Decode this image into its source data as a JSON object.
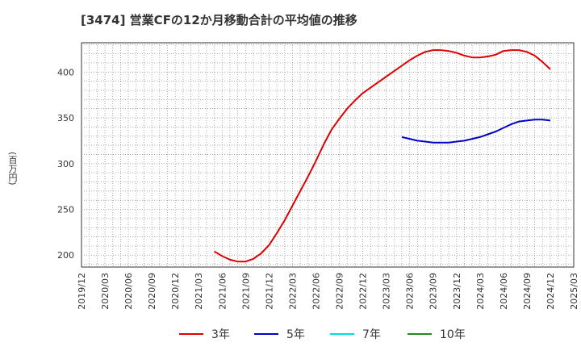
{
  "header": {
    "title": "[3474]  営業CFの12か月移動合計の平均値の推移"
  },
  "chart_data": {
    "type": "line",
    "title": "[3474]  営業CFの12か月移動合計の平均値の推移",
    "ylabel": "(百万円)",
    "xlabel": "",
    "ylim": [
      187,
      432
    ],
    "yticks": [
      200,
      250,
      300,
      350,
      400
    ],
    "x_categories": [
      "2019/12",
      "2020/03",
      "2020/06",
      "2020/09",
      "2020/12",
      "2021/03",
      "2021/06",
      "2021/09",
      "2021/12",
      "2022/03",
      "2022/06",
      "2022/09",
      "2022/12",
      "2023/03",
      "2023/06",
      "2023/09",
      "2023/12",
      "2024/03",
      "2024/06",
      "2024/09",
      "2024/12",
      "2025/03"
    ],
    "grid": true,
    "legend_position": "bottom",
    "series": [
      {
        "name": "3年",
        "color": "#dd0000",
        "points": [
          [
            "2021/05",
            204
          ],
          [
            "2021/06",
            199
          ],
          [
            "2021/07",
            195
          ],
          [
            "2021/08",
            193
          ],
          [
            "2021/09",
            193
          ],
          [
            "2021/10",
            196
          ],
          [
            "2021/11",
            202
          ],
          [
            "2021/12",
            211
          ],
          [
            "2022/01",
            224
          ],
          [
            "2022/02",
            238
          ],
          [
            "2022/03",
            254
          ],
          [
            "2022/04",
            270
          ],
          [
            "2022/05",
            286
          ],
          [
            "2022/06",
            303
          ],
          [
            "2022/07",
            321
          ],
          [
            "2022/08",
            337
          ],
          [
            "2022/09",
            349
          ],
          [
            "2022/10",
            360
          ],
          [
            "2022/11",
            369
          ],
          [
            "2022/12",
            377
          ],
          [
            "2023/01",
            383
          ],
          [
            "2023/02",
            389
          ],
          [
            "2023/03",
            395
          ],
          [
            "2023/04",
            401
          ],
          [
            "2023/05",
            407
          ],
          [
            "2023/06",
            413
          ],
          [
            "2023/07",
            418
          ],
          [
            "2023/08",
            422
          ],
          [
            "2023/09",
            424
          ],
          [
            "2023/10",
            424
          ],
          [
            "2023/11",
            423
          ],
          [
            "2023/12",
            421
          ],
          [
            "2024/01",
            418
          ],
          [
            "2024/02",
            416
          ],
          [
            "2024/03",
            416
          ],
          [
            "2024/04",
            417
          ],
          [
            "2024/05",
            419
          ],
          [
            "2024/06",
            423
          ],
          [
            "2024/07",
            424
          ],
          [
            "2024/08",
            424
          ],
          [
            "2024/09",
            422
          ],
          [
            "2024/10",
            418
          ],
          [
            "2024/11",
            411
          ],
          [
            "2024/12",
            403
          ]
        ]
      },
      {
        "name": "5年",
        "color": "#0000cc",
        "points": [
          [
            "2023/05",
            329
          ],
          [
            "2023/06",
            327
          ],
          [
            "2023/07",
            325
          ],
          [
            "2023/08",
            324
          ],
          [
            "2023/09",
            323
          ],
          [
            "2023/10",
            323
          ],
          [
            "2023/11",
            323
          ],
          [
            "2023/12",
            324
          ],
          [
            "2024/01",
            325
          ],
          [
            "2024/02",
            327
          ],
          [
            "2024/03",
            329
          ],
          [
            "2024/04",
            332
          ],
          [
            "2024/05",
            335
          ],
          [
            "2024/06",
            339
          ],
          [
            "2024/07",
            343
          ],
          [
            "2024/08",
            346
          ],
          [
            "2024/09",
            347
          ],
          [
            "2024/10",
            348
          ],
          [
            "2024/11",
            348
          ],
          [
            "2024/12",
            347
          ]
        ]
      },
      {
        "name": "7年",
        "color": "#00dddd",
        "points": []
      },
      {
        "name": "10年",
        "color": "#228B22",
        "points": []
      }
    ]
  }
}
